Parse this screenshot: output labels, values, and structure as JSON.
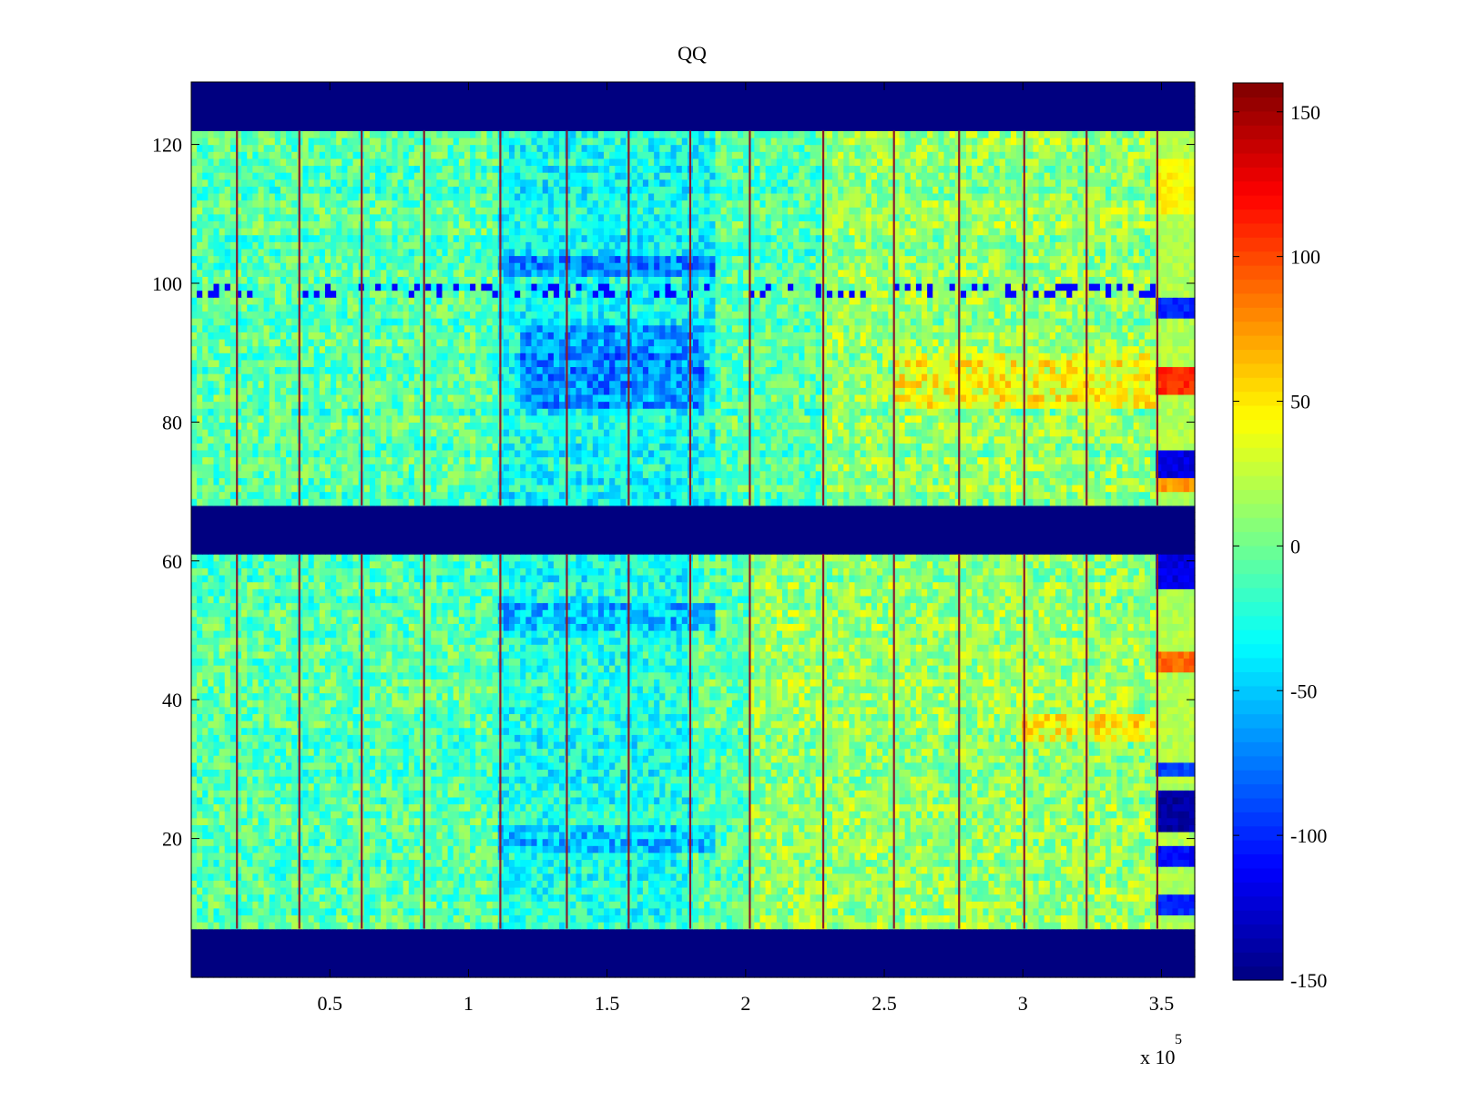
{
  "chart_data": {
    "type": "heatmap",
    "title": "QQ",
    "xlabel": "",
    "ylabel": "",
    "colormap": "jet",
    "x_scale_multiplier": "x 10",
    "x_scale_exponent": "5",
    "xlim": [
      0,
      362000
    ],
    "ylim": [
      0,
      129
    ],
    "x_ticks": [
      {
        "value": 50000,
        "label": "0.5"
      },
      {
        "value": 100000,
        "label": "1"
      },
      {
        "value": 150000,
        "label": "1.5"
      },
      {
        "value": 200000,
        "label": "2"
      },
      {
        "value": 250000,
        "label": "2.5"
      },
      {
        "value": 300000,
        "label": "3"
      },
      {
        "value": 350000,
        "label": "3.5"
      }
    ],
    "y_ticks": [
      {
        "value": 20,
        "label": "20"
      },
      {
        "value": 40,
        "label": "40"
      },
      {
        "value": 60,
        "label": "60"
      },
      {
        "value": 80,
        "label": "80"
      },
      {
        "value": 100,
        "label": "100"
      },
      {
        "value": 120,
        "label": "120"
      }
    ],
    "color_range": [
      -150,
      160
    ],
    "colorbar_ticks": [
      {
        "value": 150,
        "label": "150"
      },
      {
        "value": 100,
        "label": "100"
      },
      {
        "value": 50,
        "label": "50"
      },
      {
        "value": 0,
        "label": "0"
      },
      {
        "value": -50,
        "label": "-50"
      },
      {
        "value": -100,
        "label": "-100"
      },
      {
        "value": -150,
        "label": "-150"
      }
    ],
    "empty_row_bands": [
      [
        0,
        7
      ],
      [
        61,
        68
      ],
      [
        122,
        129
      ]
    ],
    "empty_value": -150,
    "background_value": -8,
    "vertical_boundary_lines_x": [
      16500,
      39000,
      61500,
      84000,
      111500,
      135500,
      157800,
      180000,
      201500,
      228000,
      253500,
      277000,
      300500,
      323000,
      348500
    ],
    "regions": [
      {
        "x": [
          111500,
          180000
        ],
        "y": [
          7,
          61
        ],
        "value": -25
      },
      {
        "x": [
          111500,
          190000
        ],
        "y": [
          68,
          122
        ],
        "value": -30
      },
      {
        "x": [
          118000,
          185000
        ],
        "y": [
          82,
          94
        ],
        "value": -70
      },
      {
        "x": [
          111500,
          190000
        ],
        "y": [
          101,
          104
        ],
        "value": -70
      },
      {
        "x": [
          111500,
          190000
        ],
        "y": [
          50,
          54
        ],
        "value": -55
      },
      {
        "x": [
          111500,
          190000
        ],
        "y": [
          18,
          22
        ],
        "value": -50
      },
      {
        "x": [
          201500,
          348500
        ],
        "y": [
          7,
          61
        ],
        "value": 12
      },
      {
        "x": [
          228000,
          348500
        ],
        "y": [
          68,
          122
        ],
        "value": 10
      },
      {
        "x": [
          253500,
          348500
        ],
        "y": [
          82,
          90
        ],
        "value": 40
      },
      {
        "x": [
          300500,
          348500
        ],
        "y": [
          34,
          38
        ],
        "value": 45
      }
    ],
    "row_streaks": {
      "y": 99,
      "x_range": [
        0,
        348500
      ],
      "value": -110
    },
    "last_column": {
      "x": [
        348500,
        362000
      ],
      "value": 20,
      "spots": [
        {
          "y": [
            56,
            61
          ],
          "value": -120
        },
        {
          "y": [
            44,
            47
          ],
          "value": 90
        },
        {
          "y": [
            21,
            27
          ],
          "value": -140
        },
        {
          "y": [
            29,
            31
          ],
          "value": -90
        },
        {
          "y": [
            16,
            19
          ],
          "value": -110
        },
        {
          "y": [
            9,
            12
          ],
          "value": -100
        },
        {
          "y": [
            84,
            88
          ],
          "value": 110
        },
        {
          "y": [
            70,
            73
          ],
          "value": 75
        },
        {
          "y": [
            72,
            76
          ],
          "value": -120
        },
        {
          "y": [
            95,
            98
          ],
          "value": -100
        },
        {
          "y": [
            110,
            118
          ],
          "value": 45
        }
      ]
    }
  }
}
